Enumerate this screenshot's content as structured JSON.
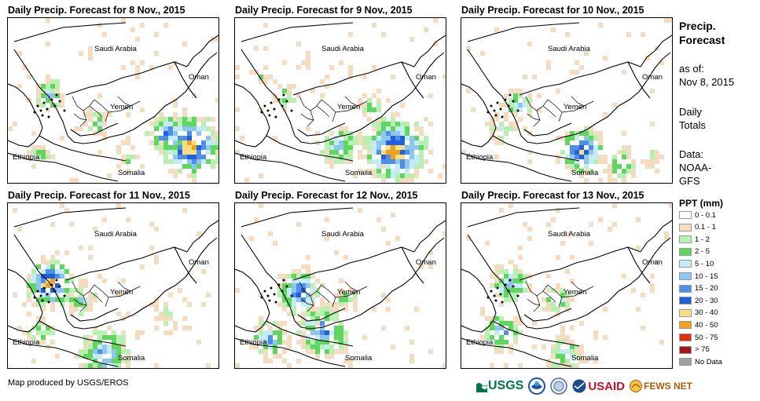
{
  "panels": [
    {
      "title": "Daily Precip. Forecast for 8 Nov., 2015"
    },
    {
      "title": "Daily Precip. Forecast for 9 Nov., 2015"
    },
    {
      "title": "Daily Precip. Forecast for 10 Nov., 2015"
    },
    {
      "title": "Daily Precip. Forecast for 11 Nov., 2015"
    },
    {
      "title": "Daily Precip. Forecast for 12 Nov., 2015"
    },
    {
      "title": "Daily Precip. Forecast for 13 Nov., 2015"
    }
  ],
  "map_labels": {
    "saudi": "Saudi Arabia",
    "oman": "Oman",
    "yemen": "Yemen",
    "ethiopia": "Ethiopia",
    "somalia": "Somalia"
  },
  "legend": {
    "title_line1": "Precip.",
    "title_line2": "Forecast",
    "asof_line1": "as of:",
    "asof_line2": "Nov 8, 2015",
    "totals_line1": "Daily",
    "totals_line2": "Totals",
    "data_line1": "Data:",
    "data_line2": "NOAA-",
    "data_line3": "GFS",
    "ppt_title": "PPT (mm)",
    "items": [
      {
        "label": "0 - 0.1",
        "color": "#ffffff"
      },
      {
        "label": "0.1 - 1",
        "color": "#f3dcc0"
      },
      {
        "label": "1 - 2",
        "color": "#b7f0b0"
      },
      {
        "label": "2 - 5",
        "color": "#5fd75f"
      },
      {
        "label": "5 - 10",
        "color": "#c4ecf8"
      },
      {
        "label": "10 - 15",
        "color": "#8fc6f0"
      },
      {
        "label": "15 - 20",
        "color": "#4f8fe6"
      },
      {
        "label": "20 - 30",
        "color": "#1f5fe0"
      },
      {
        "label": "30 - 40",
        "color": "#f8e080"
      },
      {
        "label": "40 - 50",
        "color": "#f0a020"
      },
      {
        "label": "50 - 75",
        "color": "#e03010"
      },
      {
        "label": "> 75",
        "color": "#a01818"
      },
      {
        "label": "No Data",
        "color": "#a0a0a0"
      }
    ]
  },
  "footer": {
    "credit": "Map produced by USGS/EROS"
  },
  "logos": {
    "usgs": "USGS",
    "usaid": "USAID",
    "fews": "FEWS NET"
  }
}
